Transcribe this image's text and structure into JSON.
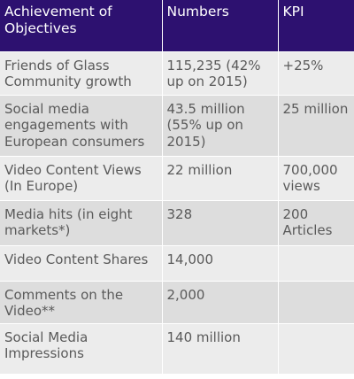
{
  "table": {
    "headers": [
      "Achievement of Objectives",
      "Numbers",
      "KPI"
    ],
    "rows": [
      [
        "Friends of Glass Community growth",
        "115,235 (42% up on 2015)",
        "+25%"
      ],
      [
        "Social media engagements with European consumers",
        "43.5 million (55% up on 2015)",
        "25 million"
      ],
      [
        "Video Content Views (In Europe)",
        "22 million",
        "700,000 views"
      ],
      [
        "Media hits (in eight markets*)",
        "328",
        "200 Articles"
      ],
      [
        "Video Content Shares",
        "14,000",
        ""
      ],
      [
        "Comments on the Video**",
        "2,000",
        ""
      ],
      [
        "Social Media Impressions",
        "140 million",
        ""
      ]
    ]
  },
  "colors": {
    "header_background": "#2d1170",
    "header_text": "#ffffff",
    "row_light": "#ececec",
    "row_dark": "#dddddd",
    "body_text": "#5a5a5a"
  }
}
